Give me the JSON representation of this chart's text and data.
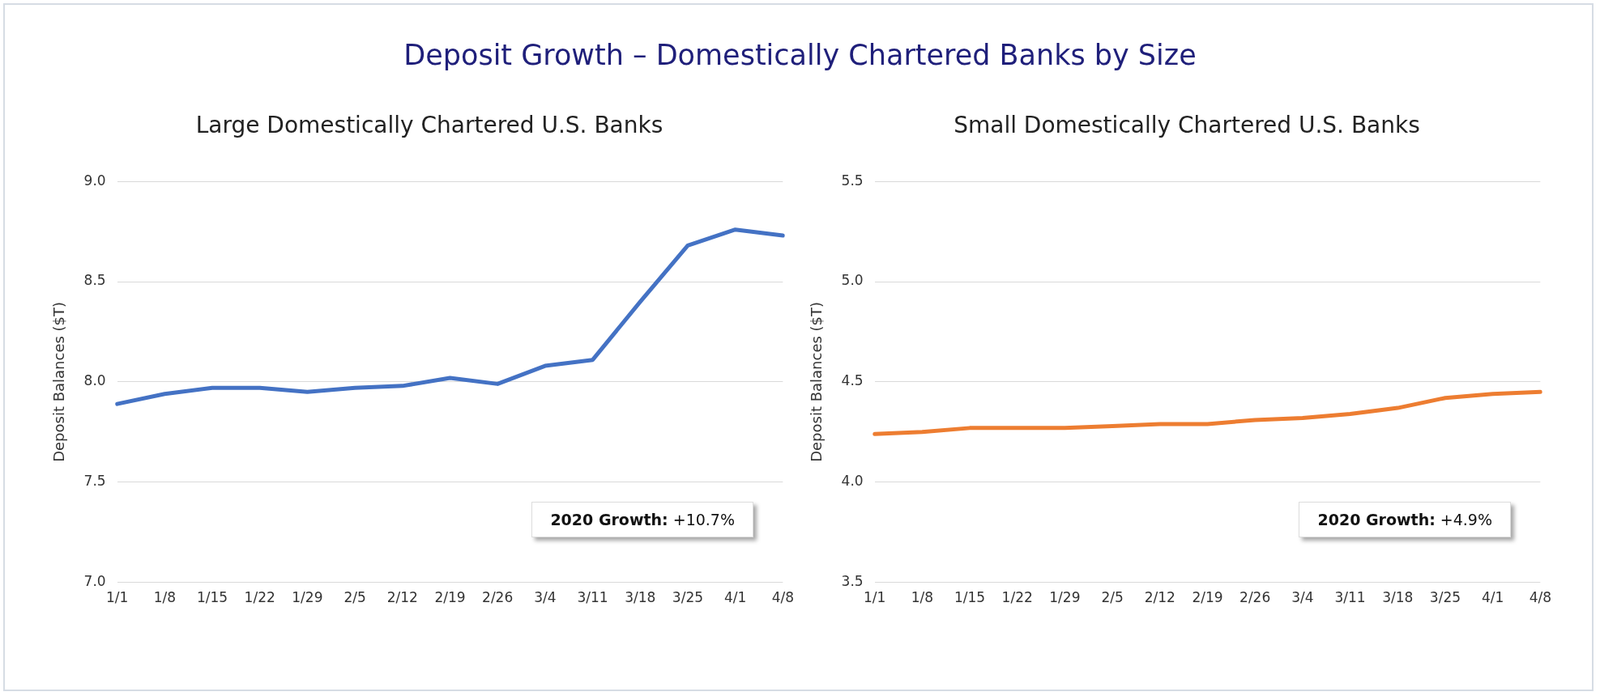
{
  "chart_data": [
    {
      "type": "other",
      "title": "Deposit Growth – Domestically Chartered Banks by Size"
    },
    {
      "type": "line",
      "title": "Large Domestically  Chartered U.S. Banks",
      "ylabel": "Deposit Balances ($T)",
      "categories": [
        "1/1",
        "1/8",
        "1/15",
        "1/22",
        "1/29",
        "2/5",
        "2/12",
        "2/19",
        "2/26",
        "3/4",
        "3/11",
        "3/18",
        "3/25",
        "4/1",
        "4/8"
      ],
      "series": [
        {
          "color": "#4472c4",
          "values": [
            7.89,
            7.94,
            7.97,
            7.97,
            7.95,
            7.97,
            7.98,
            8.02,
            7.99,
            8.08,
            8.11,
            8.4,
            8.68,
            8.76,
            8.73
          ]
        }
      ],
      "ylim": [
        7,
        9
      ],
      "yticks": [
        {
          "value": 7,
          "label": "7.0"
        },
        {
          "value": 7.5,
          "label": "7.5"
        },
        {
          "value": 8,
          "label": "8.0"
        },
        {
          "value": 8.5,
          "label": "8.5"
        },
        {
          "value": 9,
          "label": "9.0"
        }
      ],
      "grid": "y",
      "marker": "none",
      "annotations": [
        "2020 Growth: +10.7%"
      ]
    },
    {
      "type": "line",
      "title": "Small Domestically Chartered U.S. Banks",
      "ylabel": "Deposit Balances ($T)",
      "categories": [
        "1/1",
        "1/8",
        "1/15",
        "1/22",
        "1/29",
        "2/5",
        "2/12",
        "2/19",
        "2/26",
        "3/4",
        "3/11",
        "3/18",
        "3/25",
        "4/1",
        "4/8"
      ],
      "series": [
        {
          "color": "#ed7d31",
          "values": [
            4.24,
            4.25,
            4.27,
            4.27,
            4.27,
            4.28,
            4.29,
            4.29,
            4.31,
            4.32,
            4.34,
            4.37,
            4.42,
            4.44,
            4.45
          ]
        }
      ],
      "ylim": [
        3.5,
        5.5
      ],
      "yticks": [
        {
          "value": 3.5,
          "label": "3.5"
        },
        {
          "value": 4,
          "label": "4.0"
        },
        {
          "value": 4.5,
          "label": "4.5"
        },
        {
          "value": 5,
          "label": "5.0"
        },
        {
          "value": 5.5,
          "label": "5.5"
        }
      ],
      "grid": "y",
      "marker": "none",
      "annotations": [
        "2020 Growth: +4.9%"
      ]
    }
  ]
}
